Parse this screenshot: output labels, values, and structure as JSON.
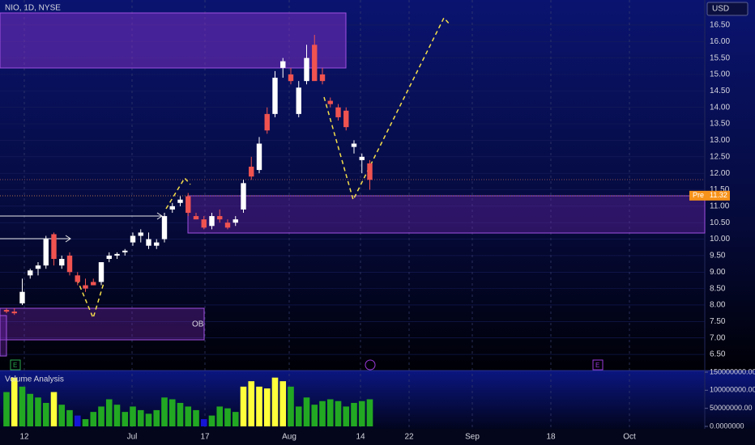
{
  "chart_data": {
    "type": "candlestick",
    "title": "NIO, 1D, NYSE",
    "currency": "USD",
    "open": [
      7.85,
      7.8,
      8.05,
      8.9,
      9.1,
      9.2,
      10.15,
      9.2,
      9.5,
      8.9,
      8.6,
      8.7,
      8.7,
      9.4,
      9.5,
      9.6,
      9.9,
      10.1,
      9.8,
      9.8,
      10.0,
      10.9,
      11.1,
      11.3,
      10.7,
      10.6,
      10.4,
      10.7,
      10.5,
      10.5,
      10.9,
      12.2,
      12.1,
      13.8,
      13.8,
      15.2,
      15.0,
      13.8,
      14.8,
      15.9,
      15.0,
      14.2,
      14.0,
      13.9,
      12.8,
      12.4,
      12.3
    ],
    "high": [
      7.9,
      7.9,
      8.8,
      9.1,
      9.3,
      10.1,
      10.2,
      9.5,
      9.6,
      9.0,
      8.8,
      8.8,
      9.3,
      9.6,
      9.6,
      9.7,
      10.2,
      10.3,
      10.2,
      10.0,
      10.8,
      11.1,
      11.3,
      11.4,
      10.8,
      10.7,
      10.8,
      10.9,
      10.6,
      10.7,
      11.8,
      12.5,
      13.1,
      14.0,
      15.1,
      15.5,
      15.2,
      14.8,
      15.9,
      16.2,
      15.2,
      14.3,
      14.1,
      14.0,
      13.0,
      12.6,
      12.4
    ],
    "low": [
      7.75,
      7.7,
      8.0,
      8.8,
      8.9,
      9.1,
      9.2,
      9.1,
      8.9,
      8.6,
      8.4,
      8.6,
      8.6,
      9.3,
      9.4,
      9.5,
      9.8,
      9.9,
      9.7,
      9.7,
      9.9,
      10.8,
      11.0,
      10.7,
      10.6,
      10.3,
      10.3,
      10.5,
      10.3,
      10.4,
      10.8,
      11.8,
      12.0,
      13.2,
      13.7,
      14.9,
      14.7,
      13.7,
      14.7,
      14.9,
      14.7,
      14.0,
      13.6,
      13.3,
      12.6,
      12.0,
      11.5
    ],
    "close": [
      7.8,
      7.75,
      8.4,
      9.05,
      9.2,
      10.0,
      9.4,
      9.4,
      9.0,
      8.7,
      8.5,
      8.6,
      9.3,
      9.5,
      9.55,
      9.65,
      10.1,
      10.2,
      10.0,
      9.9,
      10.7,
      11.0,
      11.2,
      10.8,
      10.6,
      10.35,
      10.7,
      10.6,
      10.35,
      10.6,
      11.7,
      11.9,
      12.9,
      13.3,
      14.9,
      15.4,
      14.8,
      14.6,
      15.5,
      14.8,
      14.8,
      14.1,
      13.7,
      13.4,
      12.9,
      12.5,
      11.8
    ],
    "up_color": "#ffffff",
    "down_color": "#f05350",
    "ylim": [
      6.01,
      17.26
    ],
    "yticks": [
      {
        "value": 6.5,
        "label": "6.50"
      },
      {
        "value": 7,
        "label": "7.00"
      },
      {
        "value": 7.5,
        "label": "7.50"
      },
      {
        "value": 8,
        "label": "8.00"
      },
      {
        "value": 8.5,
        "label": "8.50"
      },
      {
        "value": 9,
        "label": "9.00"
      },
      {
        "value": 9.5,
        "label": "9.50"
      },
      {
        "value": 10,
        "label": "10.00"
      },
      {
        "value": 10.5,
        "label": "10.50"
      },
      {
        "value": 11,
        "label": "11.00"
      },
      {
        "value": 11.5,
        "label": "11.50"
      },
      {
        "value": 12,
        "label": "12.00"
      },
      {
        "value": 12.5,
        "label": "12.50"
      },
      {
        "value": 13,
        "label": "13.00"
      },
      {
        "value": 13.5,
        "label": "13.50"
      },
      {
        "value": 14,
        "label": "14.00"
      },
      {
        "value": 14.5,
        "label": "14.50"
      },
      {
        "value": 15,
        "label": "15.00"
      },
      {
        "value": 15.5,
        "label": "15.50"
      },
      {
        "value": 16,
        "label": "16.00"
      },
      {
        "value": 16.5,
        "label": "16.50"
      }
    ],
    "pre_market": {
      "label": "Pre",
      "value": 11.32
    },
    "zone_label": "OB",
    "volume_title": "Volume Analysis",
    "volume": [
      95000000,
      135000000,
      110000000,
      90000000,
      80000000,
      65000000,
      95000000,
      60000000,
      45000000,
      30000000,
      20000000,
      40000000,
      55000000,
      75000000,
      60000000,
      40000000,
      55000000,
      45000000,
      35000000,
      45000000,
      80000000,
      75000000,
      65000000,
      55000000,
      45000000,
      20000000,
      30000000,
      55000000,
      50000000,
      40000000,
      110000000,
      125000000,
      110000000,
      105000000,
      135000000,
      125000000,
      110000000,
      55000000,
      80000000,
      60000000,
      70000000,
      75000000,
      70000000,
      55000000,
      65000000,
      70000000,
      75000000
    ],
    "volume_colors": [
      "#22a822",
      "#ffff3b",
      "#22a822",
      "#22a822",
      "#22a822",
      "#22a822",
      "#ffff3b",
      "#22a822",
      "#22a822",
      "#1515d6",
      "#22a822",
      "#22a822",
      "#22a822",
      "#22a822",
      "#22a822",
      "#22a822",
      "#22a822",
      "#22a822",
      "#22a822",
      "#22a822",
      "#22a822",
      "#22a822",
      "#22a822",
      "#22a822",
      "#22a822",
      "#1515d6",
      "#22a822",
      "#22a822",
      "#22a822",
      "#22a822",
      "#ffff3b",
      "#ffff3b",
      "#ffff3b",
      "#ffff3b",
      "#ffff3b",
      "#ffff3b",
      "#22a822",
      "#22a822",
      "#22a822",
      "#22a822",
      "#22a822",
      "#22a822",
      "#22a822",
      "#22a822",
      "#22a822",
      "#22a822",
      "#22a822"
    ],
    "volume_ylim": [
      0,
      150000000
    ],
    "volume_ticks": [
      {
        "value": 0,
        "label": "0.0000000"
      },
      {
        "value": 50000000,
        "label": "50000000.00"
      },
      {
        "value": 100000000,
        "label": "100000000.00"
      },
      {
        "value": 150000000,
        "label": "150000000.00"
      }
    ],
    "xtick_labels": [
      "12",
      "Jul",
      "17",
      "Aug",
      "14",
      "22",
      "Sep",
      "18",
      "Oct"
    ]
  }
}
